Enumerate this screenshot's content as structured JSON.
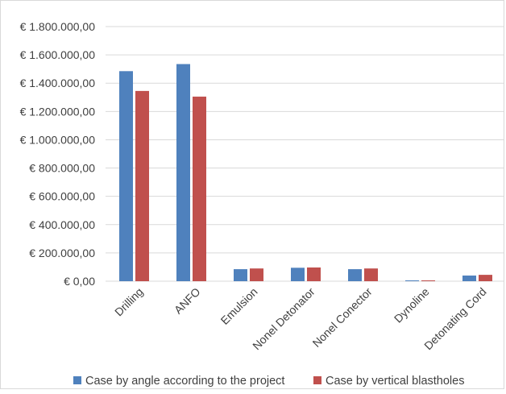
{
  "chart_data": {
    "type": "bar",
    "title": "",
    "xlabel": "",
    "ylabel": "",
    "ylim": [
      0,
      1800000
    ],
    "y_ticks": [
      {
        "value": 0,
        "label": "€ 0,00"
      },
      {
        "value": 200000,
        "label": "€ 200.000,00"
      },
      {
        "value": 400000,
        "label": "€ 400.000,00"
      },
      {
        "value": 600000,
        "label": "€ 600.000,00"
      },
      {
        "value": 800000,
        "label": "€ 800.000,00"
      },
      {
        "value": 1000000,
        "label": "€ 1.000.000,00"
      },
      {
        "value": 1200000,
        "label": "€ 1.200.000,00"
      },
      {
        "value": 1400000,
        "label": "€ 1.400.000,00"
      },
      {
        "value": 1600000,
        "label": "€ 1.600.000,00"
      },
      {
        "value": 1800000,
        "label": "€ 1.800.000,00"
      }
    ],
    "categories": [
      "Drilling",
      "ANFO",
      "Emulsion",
      "Nonel Detonator",
      "Nonel Conector",
      "Dynoline",
      "Detonating Cord"
    ],
    "series": [
      {
        "name": "Case by angle according to the project",
        "color": "#4f81bd",
        "values": [
          1485000,
          1535000,
          85000,
          95000,
          85000,
          5000,
          40000
        ]
      },
      {
        "name": "Case by vertical blastholes",
        "color": "#c0504d",
        "values": [
          1345000,
          1305000,
          90000,
          97000,
          90000,
          5000,
          45000
        ]
      }
    ],
    "grid": true,
    "gridline_color": "#d9d9d9",
    "legend_position": "bottom"
  }
}
